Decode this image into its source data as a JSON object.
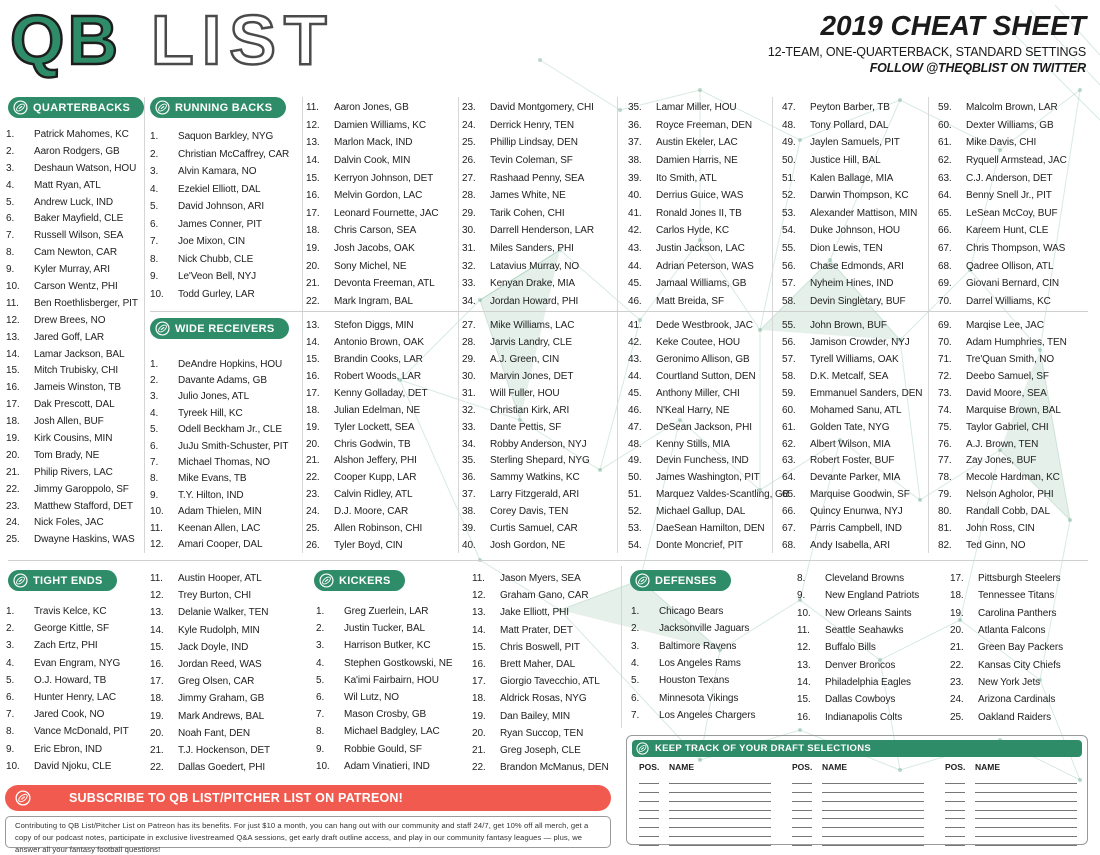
{
  "header": {
    "logo_primary": "QB",
    "logo_secondary": "LIST",
    "title": "2019 CHEAT SHEET",
    "subtitle": "12-TEAM, ONE-QUARTERBACK, STANDARD SETTINGS",
    "follow": "FOLLOW @THEQBLIST ON TWITTER"
  },
  "colors": {
    "green": "#2E8C68",
    "red": "#F15B4F"
  },
  "sections": {
    "quarterbacks": {
      "label": "QUARTERBACKS",
      "players": [
        "Patrick Mahomes, KC",
        "Aaron Rodgers, GB",
        "Deshaun Watson, HOU",
        "Matt Ryan, ATL",
        "Andrew Luck, IND",
        "Baker Mayfield, CLE",
        "Russell Wilson, SEA",
        "Cam Newton, CAR",
        "Kyler Murray, ARI",
        "Carson Wentz, PHI",
        "Ben Roethlisberger, PIT",
        "Drew Brees, NO",
        "Jared Goff, LAR",
        "Lamar Jackson, BAL",
        "Mitch Trubisky, CHI",
        "Jameis Winston, TB",
        "Dak Prescott, DAL",
        "Josh Allen, BUF",
        "Kirk Cousins, MIN",
        "Tom Brady, NE",
        "Philip Rivers, LAC",
        "Jimmy Garoppolo, SF",
        "Matthew Stafford, DET",
        "Nick Foles, JAC",
        "Dwayne Haskins, WAS"
      ]
    },
    "running_backs": {
      "label": "RUNNING BACKS",
      "players": [
        "Saquon Barkley, NYG",
        "Christian McCaffrey, CAR",
        "Alvin Kamara, NO",
        "Ezekiel Elliott, DAL",
        "David Johnson, ARI",
        "James Conner, PIT",
        "Joe Mixon, CIN",
        "Nick Chubb, CLE",
        "Le'Veon Bell, NYJ",
        "Todd Gurley, LAR",
        "Aaron Jones, GB",
        "Damien Williams, KC",
        "Marlon Mack, IND",
        "Dalvin Cook, MIN",
        "Kerryon Johnson, DET",
        "Melvin Gordon, LAC",
        "Leonard Fournette, JAC",
        "Chris Carson, SEA",
        "Josh Jacobs, OAK",
        "Sony Michel, NE",
        "Devonta Freeman, ATL",
        "Mark Ingram, BAL",
        "David Montgomery, CHI",
        "Derrick Henry, TEN",
        "Phillip Lindsay, DEN",
        "Tevin Coleman, SF",
        "Rashaad Penny, SEA",
        "James White, NE",
        "Tarik Cohen, CHI",
        "Darrell Henderson, LAR",
        "Miles Sanders, PHI",
        "Latavius Murray, NO",
        "Kenyan Drake, MIA",
        "Jordan Howard, PHI",
        "Lamar Miller, HOU",
        "Royce Freeman, DEN",
        "Austin Ekeler, LAC",
        "Damien Harris, NE",
        "Ito Smith, ATL",
        "Derrius Guice, WAS",
        "Ronald Jones II, TB",
        "Carlos Hyde, KC",
        "Justin Jackson, LAC",
        "Adrian Peterson, WAS",
        "Jamaal Williams, GB",
        "Matt Breida, SF",
        "Peyton Barber, TB",
        "Tony Pollard, DAL",
        "Jaylen Samuels, PIT",
        "Justice Hill, BAL",
        "Kalen Ballage, MIA",
        "Darwin Thompson, KC",
        "Alexander Mattison, MIN",
        "Duke Johnson, HOU",
        "Dion Lewis, TEN",
        "Chase Edmonds, ARI",
        "Nyheim Hines, IND",
        "Devin Singletary, BUF",
        "Malcolm Brown, LAR",
        "Dexter Williams, GB",
        "Mike Davis, CHI",
        "Ryquell Armstead, JAC",
        "C.J. Anderson, DET",
        "Benny Snell Jr., PIT",
        "LeSean McCoy, BUF",
        "Kareem Hunt, CLE",
        "Chris Thompson, WAS",
        "Qadree Ollison, ATL",
        "Giovani Bernard, CIN",
        "Darrel Williams, KC"
      ]
    },
    "wide_receivers": {
      "label": "WIDE RECEIVERS",
      "players": [
        "DeAndre Hopkins, HOU",
        "Davante Adams, GB",
        "Julio Jones, ATL",
        "Tyreek Hill, KC",
        "Odell Beckham Jr., CLE",
        "JuJu Smith-Schuster, PIT",
        "Michael Thomas, NO",
        "Mike Evans, TB",
        "T.Y. Hilton, IND",
        "Adam Thielen, MIN",
        "Keenan Allen, LAC",
        "Amari Cooper, DAL",
        "Stefon Diggs, MIN",
        "Antonio Brown, OAK",
        "Brandin Cooks, LAR",
        "Robert Woods, LAR",
        "Kenny Golladay, DET",
        "Julian Edelman, NE",
        "Tyler Lockett, SEA",
        "Chris Godwin, TB",
        "Alshon Jeffery, PHI",
        "Cooper Kupp, LAR",
        "Calvin Ridley, ATL",
        "D.J. Moore, CAR",
        "Allen Robinson, CHI",
        "Tyler Boyd, CIN",
        "Mike Williams, LAC",
        "Jarvis Landry, CLE",
        "A.J. Green, CIN",
        "Marvin Jones, DET",
        "Will Fuller, HOU",
        "Christian Kirk, ARI",
        "Dante Pettis, SF",
        "Robby Anderson, NYJ",
        "Sterling Shepard, NYG",
        "Sammy Watkins, KC",
        "Larry Fitzgerald, ARI",
        "Corey Davis, TEN",
        "Curtis Samuel, CAR",
        "Josh Gordon, NE",
        "Dede Westbrook, JAC",
        "Keke Coutee, HOU",
        "Geronimo Allison, GB",
        "Courtland Sutton, DEN",
        "Anthony Miller, CHI",
        "N'Keal Harry, NE",
        "DeSean Jackson, PHI",
        "Kenny Stills, MIA",
        "Devin Funchess, IND",
        "James Washington, PIT",
        "Marquez Valdes-Scantling, GB",
        "Michael Gallup, DAL",
        "DaeSean Hamilton, DEN",
        "Donte Moncrief, PIT",
        "John Brown, BUF",
        "Jamison Crowder, NYJ",
        "Tyrell Williams, OAK",
        "D.K. Metcalf, SEA",
        "Emmanuel Sanders, DEN",
        "Mohamed Sanu, ATL",
        "Golden Tate, NYG",
        "Albert Wilson, MIA",
        "Robert Foster, BUF",
        "Devante Parker, MIA",
        "Marquise Goodwin, SF",
        "Quincy Enunwa, NYJ",
        "Parris Campbell, IND",
        "Andy Isabella, ARI",
        "Marqise Lee, JAC",
        "Adam Humphries, TEN",
        "Tre'Quan Smith, NO",
        "Deebo Samuel, SF",
        "David Moore, SEA",
        "Marquise Brown, BAL",
        "Taylor Gabriel, CHI",
        "A.J. Brown, TEN",
        "Zay Jones, BUF",
        "Mecole Hardman, KC",
        "Nelson Agholor, PHI",
        "Randall Cobb, DAL",
        "John Ross, CIN",
        "Ted Ginn, NO"
      ]
    },
    "tight_ends": {
      "label": "TIGHT ENDS",
      "players": [
        "Travis Kelce, KC",
        "George Kittle, SF",
        "Zach Ertz, PHI",
        "Evan Engram, NYG",
        "O.J. Howard, TB",
        "Hunter Henry, LAC",
        "Jared Cook, NO",
        "Vance McDonald, PIT",
        "Eric Ebron, IND",
        "David Njoku, CLE",
        "Austin Hooper, ATL",
        "Trey Burton, CHI",
        "Delanie Walker, TEN",
        "Kyle Rudolph, MIN",
        "Jack Doyle, IND",
        "Jordan Reed, WAS",
        "Greg Olsen, CAR",
        "Jimmy Graham, GB",
        "Mark Andrews, BAL",
        "Noah Fant, DEN",
        "T.J. Hockenson, DET",
        "Dallas Goedert, PHI"
      ]
    },
    "kickers": {
      "label": "KICKERS",
      "players": [
        "Greg Zuerlein, LAR",
        "Justin Tucker, BAL",
        "Harrison Butker, KC",
        "Stephen Gostkowski, NE",
        "Ka'imi Fairbairn, HOU",
        "Wil Lutz, NO",
        "Mason Crosby, GB",
        "Michael Badgley, LAC",
        "Robbie Gould, SF",
        "Adam Vinatieri, IND",
        "Jason Myers, SEA",
        "Graham Gano, CAR",
        "Jake Elliott, PHI",
        "Matt Prater, DET",
        "Chris Boswell, PIT",
        "Brett Maher, DAL",
        "Giorgio Tavecchio, ATL",
        "Aldrick Rosas, NYG",
        "Dan Bailey, MIN",
        "Ryan Succop, TEN",
        "Greg Joseph, CLE",
        "Brandon McManus, DEN"
      ]
    },
    "defenses": {
      "label": "DEFENSES",
      "players": [
        "Chicago Bears",
        "Jacksonville Jaguars",
        "Baltimore Ravens",
        "Los Angeles Rams",
        "Houston Texans",
        "Minnesota Vikings",
        "Los Angeles Chargers",
        "Cleveland Browns",
        "New England Patriots",
        "New Orleans Saints",
        "Seattle Seahawks",
        "Buffalo Bills",
        "Denver Broncos",
        "Philadelphia Eagles",
        "Dallas Cowboys",
        "Indianapolis Colts",
        "Pittsburgh Steelers",
        "Tennessee Titans",
        "Carolina Panthers",
        "Atlanta Falcons",
        "Green Bay Packers",
        "Kansas City Chiefs",
        "New York Jets",
        "Arizona Cardinals",
        "Oakland Raiders"
      ]
    }
  },
  "subscribe": {
    "banner": "SUBSCRIBE TO QB LIST/PITCHER LIST ON PATREON!",
    "body": "Contributing to QB List/Pitcher List on Patreon has its benefits. For just $10 a month, you can hang out with our community and staff 24/7, get 10% off all merch, get a copy of our podcast notes, participate in exclusive livestreamed Q&A sessions, get early draft outline access, and play in our community fantasy leagues — plus, we answer all your fantasy football questions!"
  },
  "draft_tracker": {
    "banner": "KEEP TRACK OF YOUR DRAFT SELECTIONS",
    "col_pos": "POS.",
    "col_name": "NAME",
    "groups": 3,
    "rows": 8
  }
}
